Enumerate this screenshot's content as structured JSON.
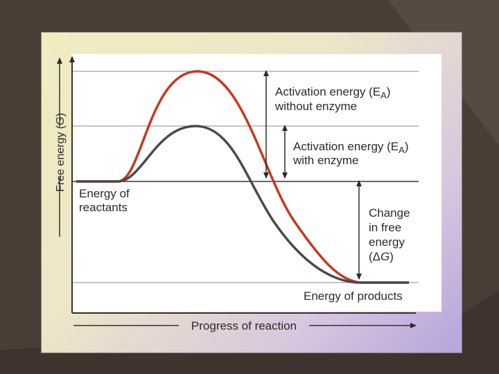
{
  "diagram": {
    "y_axis_label_main": "Free energy (",
    "y_axis_label_symbol": "G",
    "y_axis_label_close": ")",
    "x_axis_label": "Progress of reaction",
    "labels": {
      "activation_without_line1_pre": "Activation energy (E",
      "activation_without_line1_sub": "A",
      "activation_without_line1_post": ")",
      "activation_without_line2": "without enzyme",
      "activation_with_line1_pre": "Activation energy (E",
      "activation_with_line1_sub": "A",
      "activation_with_line1_post": ")",
      "activation_with_line2": "with enzyme",
      "reactants_line1": "Energy of",
      "reactants_line2": "reactants",
      "change_line1": "Change",
      "change_line2": "in free",
      "change_line3": "energy",
      "change_line4_open": "(Δ",
      "change_line4_symbol": "G",
      "change_line4_close": ")",
      "products": "Energy of products"
    },
    "colors": {
      "curve_without_enzyme": "#c8371c",
      "curve_with_enzyme": "#4a4a4a",
      "axis": "#333333",
      "guide_lines": "#8a8a8a"
    }
  }
}
